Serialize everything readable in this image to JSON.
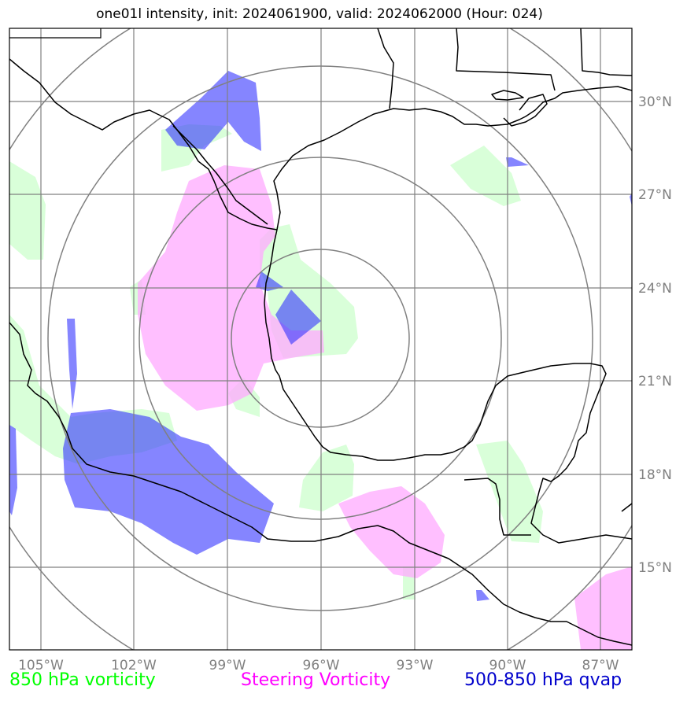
{
  "title": "one01l intensity, init: 2024061900, valid: 2024062000 (Hour: 024)",
  "map": {
    "lon_labels": [
      "105°W",
      "102°W",
      "99°W",
      "96°W",
      "93°W",
      "90°W",
      "87°W"
    ],
    "lat_labels": [
      "30°N",
      "27°N",
      "24°N",
      "21°N",
      "18°N",
      "15°N"
    ],
    "gridline_color": "#808080",
    "coast_color": "#000000"
  },
  "legend": {
    "items": [
      {
        "label": "850 hPa vorticity",
        "color": "#00ff00"
      },
      {
        "label": "Steering Vorticity",
        "color": "#ff00ff"
      },
      {
        "label": "500-850 hPa qvap",
        "color": "#0000cc"
      }
    ]
  },
  "layers": {
    "vort850_color": "#ccffcc",
    "steering_color": "#ffaaff",
    "qvap_color": "#0000ff"
  }
}
